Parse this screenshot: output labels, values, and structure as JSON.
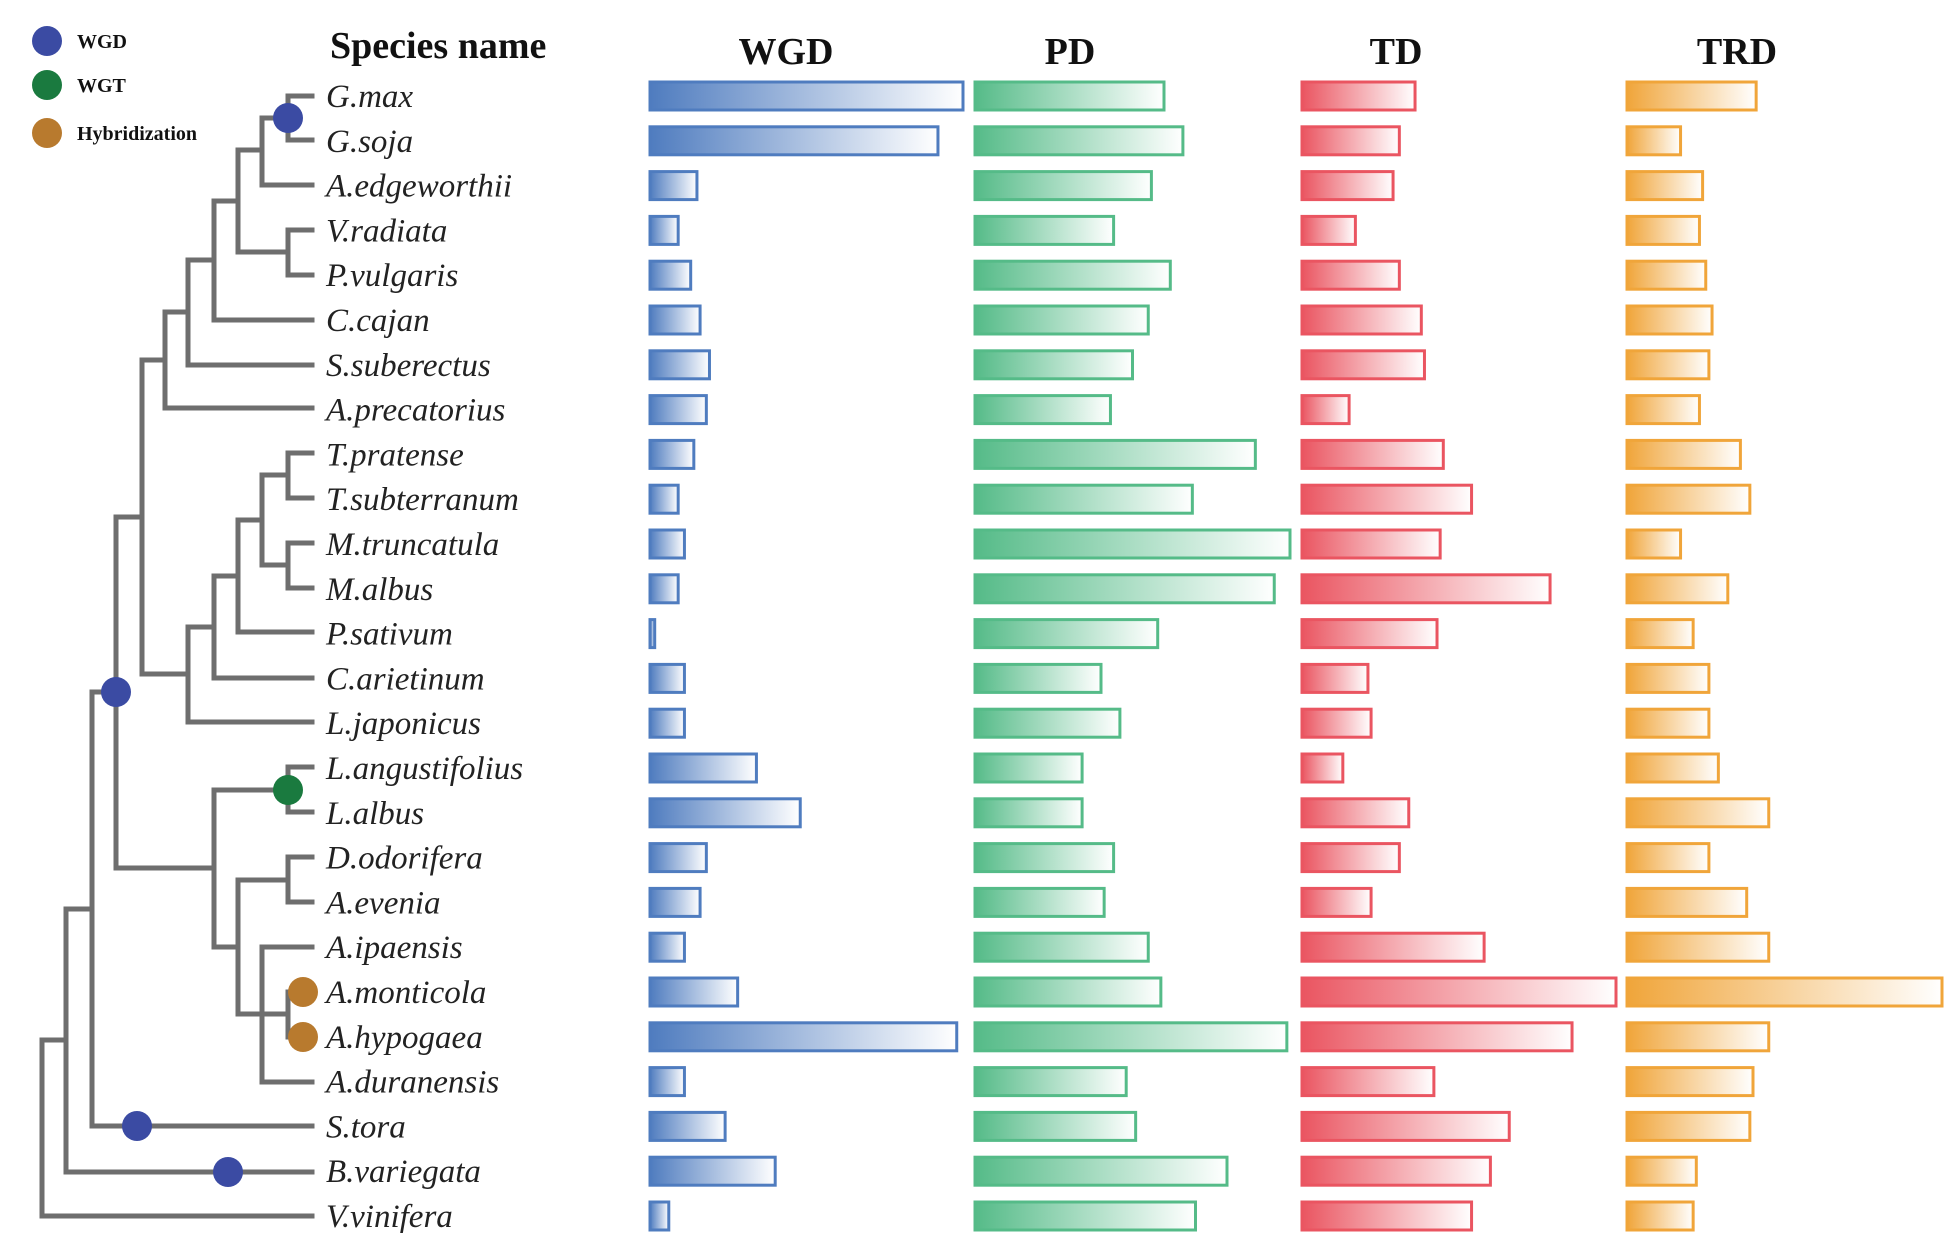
{
  "legend": [
    {
      "label": "WGD",
      "color": "#3b4ba3"
    },
    {
      "label": "WGT",
      "color": "#1a7a3f"
    },
    {
      "label": "Hybridization",
      "color": "#b87a2e"
    }
  ],
  "species_header": "Species name",
  "chart_data": {
    "type": "bar",
    "orientation": "horizontal",
    "categories": [
      "G.max",
      "G.soja",
      "A.edgeworthii",
      "V.radiata",
      "P.vulgaris",
      "C.cajan",
      "S.suberectus",
      "A.precatorius",
      "T.pratense",
      "T.subterranum",
      "M.truncatula",
      "M.albus",
      "P.sativum",
      "C.arietinum",
      "L.japonicus",
      "L.angustifolius",
      "L.albus",
      "D.odorifera",
      "A.evenia",
      "A.ipaensis",
      "A.monticola",
      "A.hypogaea",
      "A.duranensis",
      "S.tora",
      "B.variegata",
      "V.vinifera"
    ],
    "series": [
      {
        "name": "WGD",
        "color": "#4f7cbf",
        "values": [
          100,
          92,
          15,
          9,
          13,
          16,
          19,
          18,
          14,
          9,
          11,
          9,
          1.5,
          11,
          11,
          34,
          48,
          18,
          16,
          11,
          28,
          98,
          11,
          24,
          40,
          6
        ]
      },
      {
        "name": "PD",
        "color": "#55bb88",
        "values": [
          60,
          66,
          56,
          44,
          62,
          55,
          50,
          43,
          89,
          69,
          100,
          95,
          58,
          40,
          46,
          34,
          34,
          44,
          41,
          55,
          59,
          99,
          48,
          51,
          80,
          70
        ]
      },
      {
        "name": "TD",
        "color": "#ea5561",
        "values": [
          36,
          31,
          29,
          17,
          31,
          38,
          39,
          15,
          45,
          54,
          44,
          79,
          43,
          21,
          22,
          13,
          34,
          31,
          22,
          58,
          100,
          86,
          42,
          66,
          60,
          54
        ]
      },
      {
        "name": "TRD",
        "color": "#f0a53a",
        "values": [
          41,
          17,
          24,
          23,
          25,
          27,
          26,
          23,
          36,
          39,
          17,
          32,
          21,
          26,
          26,
          29,
          45,
          26,
          38,
          45,
          100,
          45,
          40,
          39,
          22,
          21
        ]
      }
    ]
  }
}
